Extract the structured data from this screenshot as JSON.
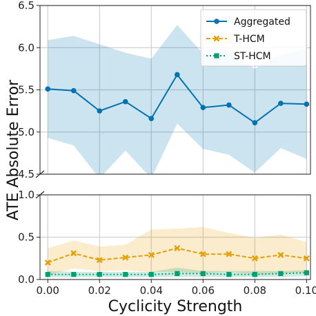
{
  "chart_data": {
    "type": "line",
    "xlabel": "Cyclicity Strength",
    "ylabel": "ATE Absolute Error",
    "x": [
      0.0,
      0.01,
      0.02,
      0.03,
      0.04,
      0.05,
      0.06,
      0.07,
      0.08,
      0.09,
      0.1
    ],
    "xlim": [
      -0.003,
      0.1015
    ],
    "x_ticks": [
      0.0,
      0.02,
      0.04,
      0.06,
      0.08,
      0.1
    ],
    "x_tick_labels": [
      "0.00",
      "0.02",
      "0.04",
      "0.06",
      "0.08",
      "0.10"
    ],
    "broken_y_axis": true,
    "upper_panel": {
      "ylim": [
        4.5,
        6.5
      ],
      "y_ticks": [
        4.5,
        5.0,
        5.5,
        6.0,
        6.5
      ],
      "y_tick_labels": [
        "4.5",
        "5.0",
        "5.5",
        "6.0",
        "6.5"
      ]
    },
    "lower_panel": {
      "ylim": [
        0.0,
        1.0
      ],
      "y_ticks": [
        0.0,
        0.5,
        1.0
      ],
      "y_tick_labels": [
        "0.0",
        "0.5",
        "1.0"
      ]
    },
    "grid": true,
    "legend_position": "top-right",
    "series": [
      {
        "name": "Aggregated",
        "panel": "upper",
        "color": "#0072B2",
        "line_style": "solid",
        "marker": "circle",
        "values": [
          5.51,
          5.49,
          5.25,
          5.36,
          5.16,
          5.68,
          5.29,
          5.32,
          5.11,
          5.34,
          5.33
        ],
        "band_upper": [
          6.09,
          6.14,
          6.04,
          5.94,
          5.87,
          6.27,
          5.93,
          5.95,
          5.75,
          5.92,
          5.98
        ],
        "band_lower": [
          4.93,
          4.84,
          4.45,
          4.78,
          4.45,
          5.1,
          4.8,
          4.73,
          4.52,
          4.81,
          4.68
        ]
      },
      {
        "name": "T-HCM",
        "panel": "lower",
        "color": "#E69F00",
        "line_style": "dashed",
        "marker": "x",
        "values": [
          0.2,
          0.31,
          0.23,
          0.26,
          0.29,
          0.37,
          0.3,
          0.3,
          0.25,
          0.29,
          0.25
        ],
        "band_upper": [
          0.37,
          0.46,
          0.39,
          0.41,
          0.59,
          0.6,
          0.62,
          0.55,
          0.49,
          0.53,
          0.44
        ],
        "band_lower": [
          0.05,
          0.13,
          0.1,
          0.11,
          0.09,
          0.09,
          0.07,
          0.09,
          0.06,
          0.07,
          0.08
        ]
      },
      {
        "name": "ST-HCM",
        "panel": "lower",
        "color": "#009E73",
        "line_style": "dotted",
        "marker": "square",
        "values": [
          0.06,
          0.06,
          0.06,
          0.06,
          0.06,
          0.07,
          0.07,
          0.06,
          0.06,
          0.07,
          0.08
        ],
        "band_upper": [
          0.1,
          0.09,
          0.09,
          0.09,
          0.09,
          0.14,
          0.1,
          0.1,
          0.1,
          0.1,
          0.11
        ],
        "band_lower": [
          0.03,
          0.03,
          0.03,
          0.03,
          0.03,
          0.03,
          0.03,
          0.03,
          0.03,
          0.03,
          0.04
        ]
      }
    ]
  }
}
